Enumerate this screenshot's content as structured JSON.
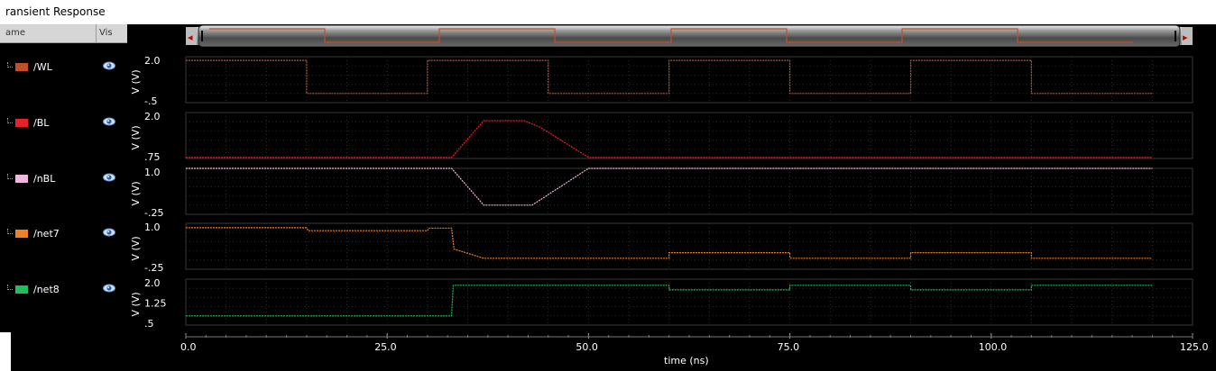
{
  "window": {
    "title": "ransient Response"
  },
  "columns": {
    "name": "ame",
    "visible": "Vis"
  },
  "signals": [
    {
      "name": "/WL",
      "color": "#c0502b",
      "visible": true
    },
    {
      "name": "/BL",
      "color": "#e8202a",
      "visible": true
    },
    {
      "name": "/nBL",
      "color": "#f0b8e0",
      "visible": true
    },
    {
      "name": "/net7",
      "color": "#f08020",
      "visible": true
    },
    {
      "name": "/net8",
      "color": "#1fbf5a",
      "visible": true
    }
  ],
  "scrollbar": {
    "left_arrow": "◂",
    "right_arrow": "▸"
  },
  "chart_data": {
    "type": "line",
    "xlabel": "time (ns)",
    "xlim": [
      0,
      125
    ],
    "xticks": [
      "0.0",
      "25.0",
      "50.0",
      "75.0",
      "100.0",
      "125.0"
    ],
    "grid": true,
    "panels": [
      {
        "signal": "/WL",
        "ylabel": "V (V)",
        "yticks": [
          "2.0",
          "-.5"
        ],
        "ylim": [
          -0.5,
          2.0
        ],
        "x": [
          0,
          15,
          15,
          30,
          30,
          45,
          45,
          60,
          60,
          75,
          75,
          90,
          90,
          105,
          105,
          120
        ],
        "y": [
          1.8,
          1.8,
          0,
          0,
          1.8,
          1.8,
          0,
          0,
          1.8,
          1.8,
          0,
          0,
          1.8,
          1.8,
          0,
          0
        ]
      },
      {
        "signal": "/BL",
        "ylabel": "V (V)",
        "yticks": [
          "2.0",
          ".75"
        ],
        "ylim": [
          0.75,
          2.0
        ],
        "x": [
          0,
          33,
          37,
          42,
          44,
          50,
          120
        ],
        "y": [
          0.78,
          0.78,
          1.78,
          1.78,
          1.6,
          0.78,
          0.78
        ]
      },
      {
        "signal": "/nBL",
        "ylabel": "V (V)",
        "yticks": [
          "1.0",
          "-.25"
        ],
        "ylim": [
          -0.25,
          1.0
        ],
        "x": [
          0,
          33,
          37,
          43,
          50,
          120
        ],
        "y": [
          1.0,
          1.0,
          0.0,
          0.0,
          1.0,
          1.0
        ]
      },
      {
        "signal": "/net7",
        "ylabel": "V (V)",
        "yticks": [
          "1.0",
          "-.25"
        ],
        "ylim": [
          -0.25,
          1.0
        ],
        "x": [
          0,
          15,
          15.2,
          30,
          30.2,
          33,
          33.3,
          37,
          45,
          60,
          60,
          75,
          75,
          90,
          90,
          105,
          105,
          120
        ],
        "y": [
          0.88,
          0.88,
          0.8,
          0.8,
          0.87,
          0.87,
          0.3,
          0.05,
          0.05,
          0.05,
          0.2,
          0.2,
          0.05,
          0.05,
          0.2,
          0.2,
          0.05,
          0.05
        ]
      },
      {
        "signal": "/net8",
        "ylabel": "V (V)",
        "yticks": [
          "2.0",
          "1.25",
          ".5"
        ],
        "ylim": [
          0.5,
          2.0
        ],
        "x": [
          0,
          33,
          33.2,
          60,
          60,
          75,
          75,
          90,
          90,
          105,
          105,
          120
        ],
        "y": [
          0.8,
          0.8,
          1.8,
          1.8,
          1.65,
          1.65,
          1.8,
          1.8,
          1.65,
          1.65,
          1.8,
          1.8
        ]
      }
    ]
  }
}
